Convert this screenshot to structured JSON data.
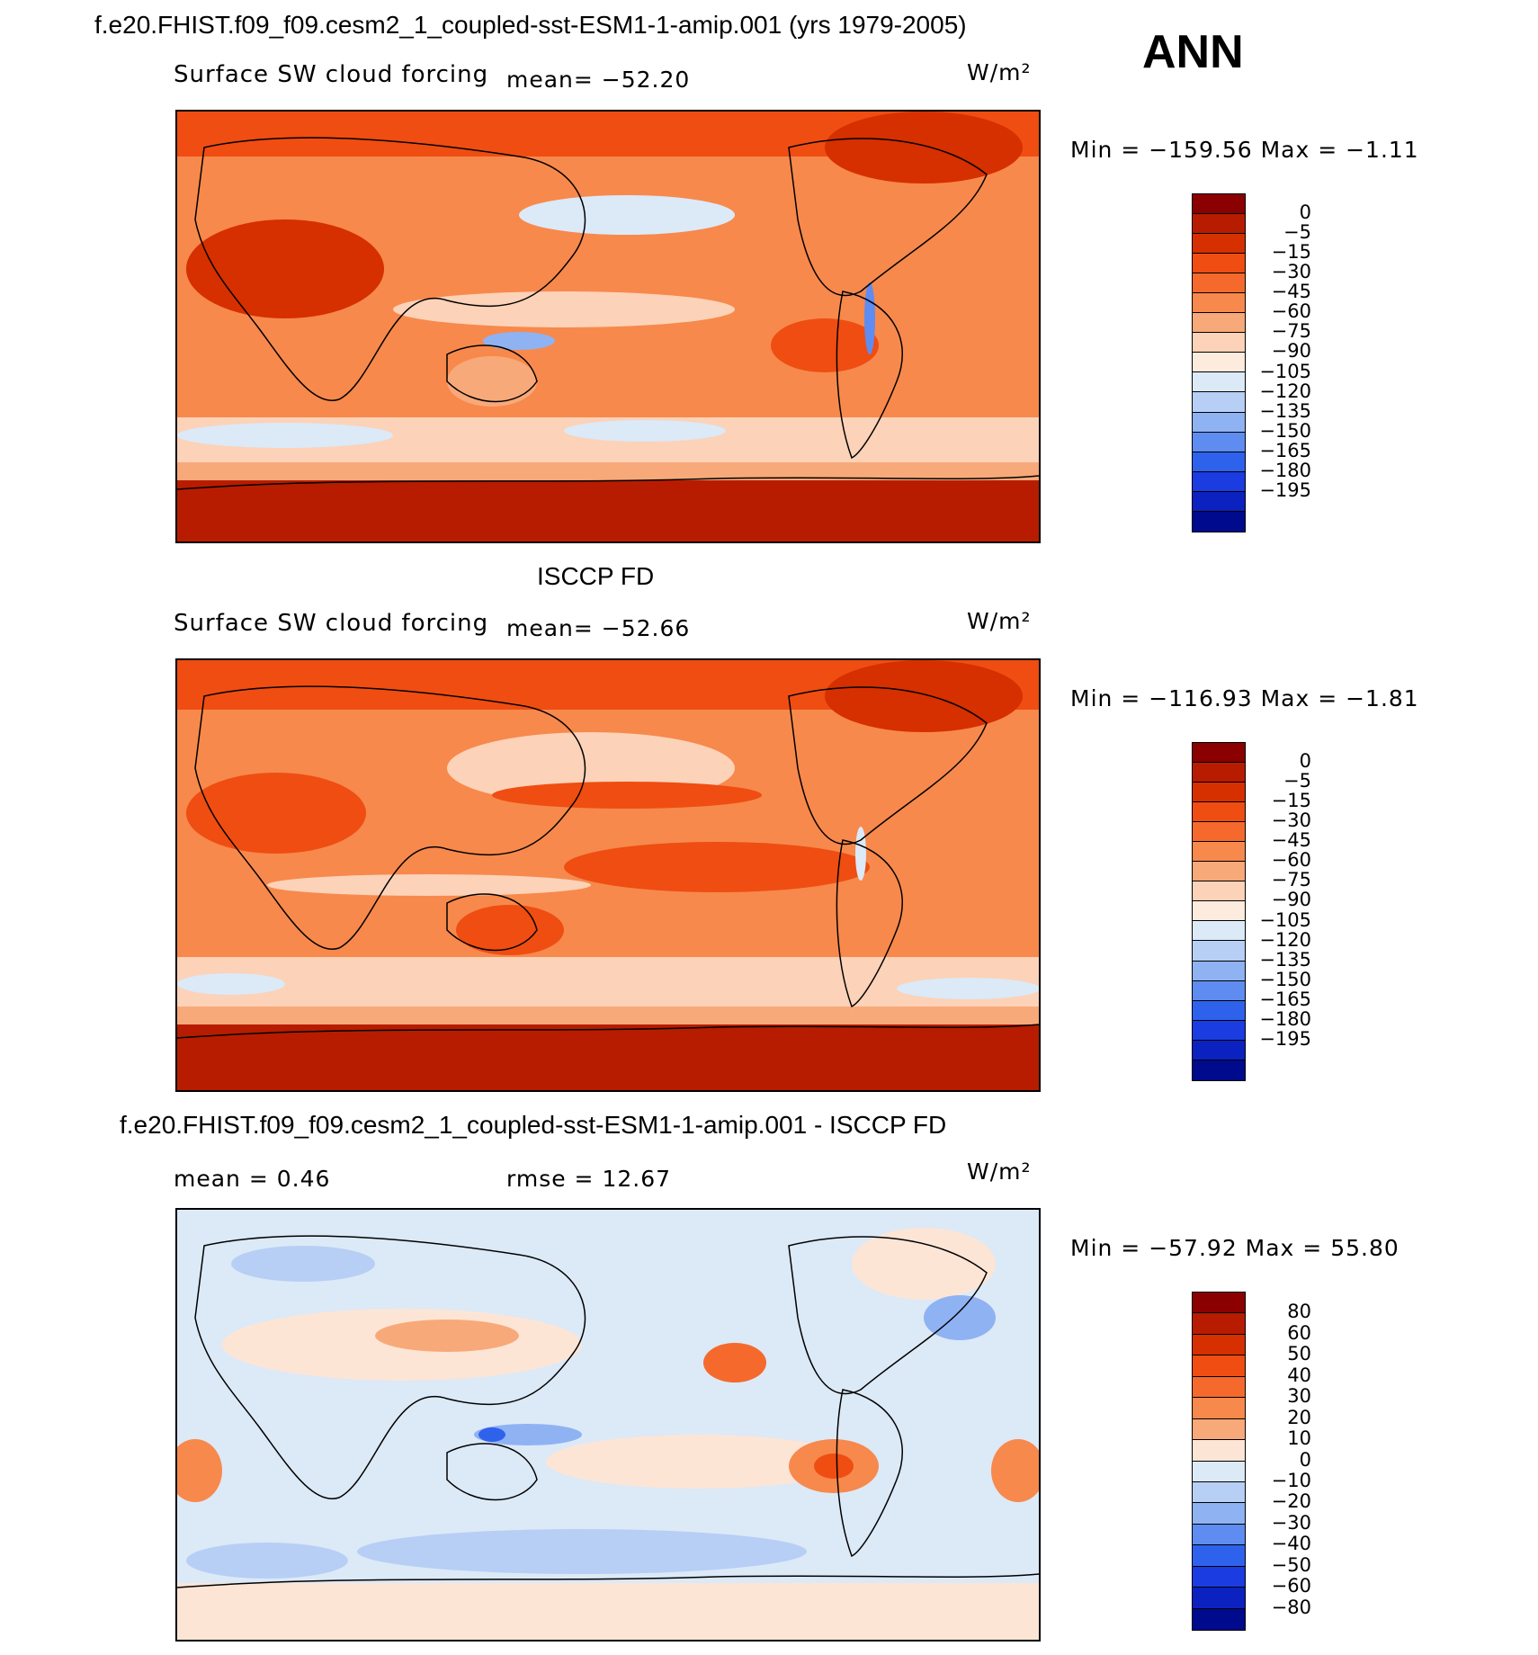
{
  "header": {
    "case_title": "f.e20.FHIST.f09_f09.cesm2_1_coupled-sst-ESM1-1-amip.001 (yrs 1979-2005)",
    "season": "ANN"
  },
  "panels": [
    {
      "id": "model",
      "section_title": "",
      "variable": "Surface SW cloud forcing",
      "stat_left": "mean= −52.20",
      "stat_right": "",
      "units": "W/m²",
      "minmax": "Min = −159.56 Max =  −1.11",
      "colorbar_labels": [
        "0",
        "−5",
        "−15",
        "−30",
        "−45",
        "−60",
        "−75",
        "−90",
        "−105",
        "−120",
        "−135",
        "−150",
        "−165",
        "−180",
        "−195"
      ],
      "colorbar_colors": [
        "#8b0000",
        "#b71c00",
        "#d62f00",
        "#ef4d12",
        "#f56a2c",
        "#f7894c",
        "#f8a979",
        "#fcd2b8",
        "#fdebdd",
        "#dce9f7",
        "#b7cff5",
        "#8fb2f3",
        "#5f8cf0",
        "#2f62ec",
        "#1a3ce0",
        "#0b22c0",
        "#000a8c"
      ]
    },
    {
      "id": "obs",
      "section_title": "ISCCP FD",
      "variable": "Surface SW cloud forcing",
      "stat_left": "mean= −52.66",
      "stat_right": "",
      "units": "W/m²",
      "minmax": "Min = −116.93 Max =  −1.81",
      "colorbar_labels": [
        "0",
        "−5",
        "−15",
        "−30",
        "−45",
        "−60",
        "−75",
        "−90",
        "−105",
        "−120",
        "−135",
        "−150",
        "−165",
        "−180",
        "−195"
      ],
      "colorbar_colors": [
        "#8b0000",
        "#b71c00",
        "#d62f00",
        "#ef4d12",
        "#f56a2c",
        "#f7894c",
        "#f8a979",
        "#fcd2b8",
        "#fdebdd",
        "#dce9f7",
        "#b7cff5",
        "#8fb2f3",
        "#5f8cf0",
        "#2f62ec",
        "#1a3ce0",
        "#0b22c0",
        "#000a8c"
      ]
    },
    {
      "id": "diff",
      "section_title": "f.e20.FHIST.f09_f09.cesm2_1_coupled-sst-ESM1-1-amip.001 - ISCCP FD",
      "variable": "",
      "stat_left": "mean =    0.46",
      "stat_right": "rmse =   12.67",
      "units": "W/m²",
      "minmax": "Min = −57.92 Max =  55.80",
      "colorbar_labels": [
        "80",
        "60",
        "50",
        "40",
        "30",
        "20",
        "10",
        "0",
        "−10",
        "−20",
        "−30",
        "−40",
        "−50",
        "−60",
        "−80"
      ],
      "colorbar_colors": [
        "#8b0000",
        "#b71c00",
        "#d62f00",
        "#ef4d12",
        "#f56a2c",
        "#f7894c",
        "#f8a979",
        "#fde5d6",
        "#dce9f7",
        "#b7cff5",
        "#8fb2f3",
        "#5f8cf0",
        "#2f62ec",
        "#1a3ce0",
        "#0b22c0",
        "#000a8c"
      ]
    }
  ],
  "chart_data": [
    {
      "type": "heatmap",
      "title": "Surface SW cloud forcing",
      "subtitle": "f.e20.FHIST.f09_f09.cesm2_1_coupled-sst-ESM1-1-amip.001 (yrs 1979-2005), ANN",
      "units": "W/m²",
      "mean": -52.2,
      "min": -159.56,
      "max": -1.11,
      "contour_levels": [
        0,
        -5,
        -15,
        -30,
        -45,
        -60,
        -75,
        -90,
        -105,
        -120,
        -135,
        -150,
        -165,
        -180,
        -195
      ]
    },
    {
      "type": "heatmap",
      "title": "Surface SW cloud forcing",
      "subtitle": "ISCCP FD",
      "units": "W/m²",
      "mean": -52.66,
      "min": -116.93,
      "max": -1.81,
      "contour_levels": [
        0,
        -5,
        -15,
        -30,
        -45,
        -60,
        -75,
        -90,
        -105,
        -120,
        -135,
        -150,
        -165,
        -180,
        -195
      ]
    },
    {
      "type": "heatmap",
      "title": "f.e20.FHIST.f09_f09.cesm2_1_coupled-sst-ESM1-1-amip.001 - ISCCP FD",
      "units": "W/m²",
      "mean": 0.46,
      "rmse": 12.67,
      "min": -57.92,
      "max": 55.8,
      "contour_levels": [
        80,
        60,
        50,
        40,
        30,
        20,
        10,
        0,
        -10,
        -20,
        -30,
        -40,
        -50,
        -60,
        -80
      ]
    }
  ]
}
